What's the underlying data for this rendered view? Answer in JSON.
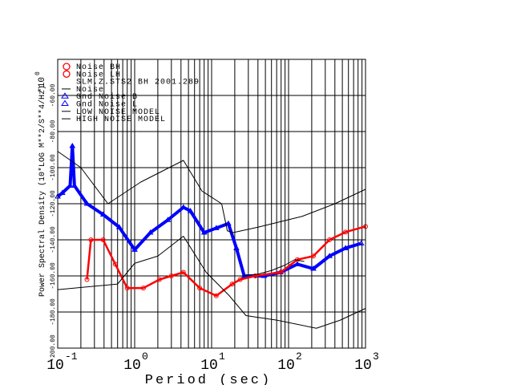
{
  "chart_data": {
    "type": "scatter",
    "title": "",
    "xlabel": "Period (sec)",
    "ylabel": "Power Spectral Density (10*LOG M**2/S**4/Hz)",
    "yscale_label": "*10",
    "yscale_exp": "0",
    "xscale": "log",
    "xlim": [
      0.1,
      1000
    ],
    "ylim": [
      -200,
      -40
    ],
    "grid": true,
    "legend_position": "top-left",
    "x_ticks": [
      {
        "base": "10",
        "exp": "-1"
      },
      {
        "base": "10",
        "exp": "0"
      },
      {
        "base": "10",
        "exp": "1"
      },
      {
        "base": "10",
        "exp": "2"
      },
      {
        "base": "10",
        "exp": "3"
      }
    ],
    "y_ticks": [
      "-200.00",
      "-180.00",
      "-160.00",
      "-140.00",
      "-120.00",
      "-100.00",
      "-80.00",
      "-60.00"
    ],
    "y_tick_values": [
      -200,
      -180,
      -160,
      -140,
      -120,
      -100,
      -80,
      -60
    ],
    "legend": [
      {
        "symbol": "circle",
        "color": "#ff0000",
        "label": "Noise BH"
      },
      {
        "symbol": "circle",
        "color": "#ff0000",
        "label": "Noise LH"
      },
      {
        "symbol": "none",
        "color": "#000000",
        "label": "SLM.Z.STS2 BH  2001.289"
      },
      {
        "symbol": "line",
        "color": "#000000",
        "label": "Noise"
      },
      {
        "symbol": "triangle",
        "color": "#0000ff",
        "label": "Gnd Noise B"
      },
      {
        "symbol": "triangle",
        "color": "#0000ff",
        "label": "Gnd Noise L"
      },
      {
        "symbol": "line",
        "color": "#000000",
        "label": "LOW NOISE MODEL"
      },
      {
        "symbol": "line",
        "color": "#000000",
        "label": "HIGH NOISE MODEL"
      }
    ],
    "series": [
      {
        "name": "Gnd Noise",
        "color": "#0000ff",
        "marker": "triangle",
        "x": [
          0.1,
          0.115,
          0.145,
          0.155,
          0.165,
          0.24,
          0.39,
          0.63,
          1.0,
          1.6,
          2.7,
          4.3,
          5.3,
          8.0,
          11.5,
          16.5,
          21,
          26.5,
          48,
          79,
          130,
          210,
          340,
          550,
          880
        ],
        "y": [
          -116,
          -114,
          -110,
          -88,
          -110,
          -120,
          -126,
          -133,
          -145.5,
          -136,
          -129,
          -122,
          -124,
          -136,
          -133.5,
          -131,
          -144.6,
          -160,
          -160,
          -158,
          -153.5,
          -156,
          -149,
          -144.6,
          -142
        ]
      },
      {
        "name": "Noise",
        "color": "#ff0000",
        "marker": "circle",
        "x": [
          0.24,
          0.27,
          0.39,
          0.56,
          0.8,
          1.3,
          2.1,
          3.0,
          4.3,
          7,
          11.5,
          18.5,
          23.5,
          37,
          79,
          130,
          210,
          340,
          550,
          1000
        ],
        "y": [
          -162,
          -140,
          -140,
          -153.5,
          -166.7,
          -166.7,
          -162,
          -160,
          -158,
          -166.7,
          -171,
          -164.5,
          -162,
          -160,
          -158,
          -151,
          -149,
          -140,
          -135.7,
          -132.6
        ]
      },
      {
        "name": "Noise (line)",
        "color": "#000000",
        "marker": "none",
        "x": [
          25,
          40,
          60,
          90,
          120,
          160
        ],
        "y": [
          -160,
          -159,
          -157,
          -154,
          -151,
          -152
        ]
      },
      {
        "name": "HIGH NOISE MODEL",
        "color": "#000000",
        "marker": "none",
        "x": [
          0.1,
          0.2,
          0.45,
          1.2,
          4.3,
          7.5,
          13.5,
          16,
          19,
          40,
          150,
          400,
          1000
        ],
        "y": [
          -91,
          -100,
          -120,
          -108,
          -96,
          -113,
          -120,
          -135,
          -136,
          -133,
          -127,
          -120,
          -112
        ]
      },
      {
        "name": "LOW NOISE MODEL",
        "color": "#000000",
        "marker": "none",
        "x": [
          0.1,
          0.6,
          1.0,
          2.0,
          4.3,
          8.5,
          17,
          28,
          70,
          230,
          470,
          1000
        ],
        "y": [
          -167.6,
          -164.5,
          -153,
          -149,
          -138,
          -158,
          -171,
          -182,
          -184.5,
          -189,
          -184.5,
          -178
        ]
      }
    ]
  }
}
